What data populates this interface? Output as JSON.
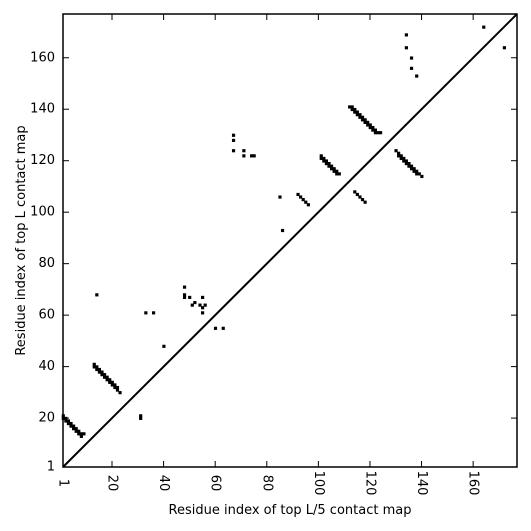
{
  "chart_data": {
    "type": "scatter",
    "xlabel": "Residue index of top L/5 contact map",
    "ylabel": "Residue index of top L contact map",
    "xlim": [
      1,
      177
    ],
    "ylim": [
      1,
      177
    ],
    "x_ticks": [
      1,
      20,
      40,
      60,
      80,
      100,
      120,
      140,
      160
    ],
    "y_ticks": [
      1,
      20,
      40,
      60,
      80,
      100,
      120,
      140,
      160
    ],
    "diagonal": true,
    "grid": false,
    "marker_color": "#000000",
    "lower_triangle_points": [
      [
        1,
        20
      ],
      [
        2,
        19
      ],
      [
        3,
        18
      ],
      [
        4,
        17
      ],
      [
        5,
        16
      ],
      [
        6,
        15
      ],
      [
        7,
        14
      ],
      [
        8,
        13
      ],
      [
        9,
        14
      ],
      [
        1,
        21
      ],
      [
        2,
        20
      ],
      [
        3,
        19
      ],
      [
        4,
        18
      ],
      [
        5,
        17
      ],
      [
        6,
        16
      ],
      [
        7,
        15
      ],
      [
        8,
        14
      ],
      [
        13,
        40
      ],
      [
        14,
        39
      ],
      [
        15,
        38
      ],
      [
        16,
        37
      ],
      [
        17,
        36
      ],
      [
        18,
        35
      ],
      [
        19,
        34
      ],
      [
        20,
        33
      ],
      [
        21,
        32
      ],
      [
        22,
        31
      ],
      [
        23,
        30
      ],
      [
        13,
        41
      ],
      [
        14,
        40
      ],
      [
        15,
        39
      ],
      [
        16,
        38
      ],
      [
        17,
        37
      ],
      [
        18,
        36
      ],
      [
        19,
        35
      ],
      [
        20,
        34
      ],
      [
        21,
        33
      ],
      [
        22,
        32
      ],
      [
        31,
        20
      ],
      [
        31,
        21
      ],
      [
        48,
        68
      ],
      [
        50,
        67
      ],
      [
        52,
        65
      ],
      [
        54,
        64
      ],
      [
        55,
        63
      ],
      [
        92,
        107
      ],
      [
        93,
        106
      ],
      [
        94,
        105
      ],
      [
        95,
        104
      ],
      [
        96,
        103
      ],
      [
        114,
        108
      ],
      [
        115,
        107
      ],
      [
        116,
        106
      ],
      [
        117,
        105
      ],
      [
        101,
        121
      ],
      [
        102,
        120
      ],
      [
        103,
        119
      ],
      [
        104,
        118
      ],
      [
        105,
        117
      ],
      [
        106,
        116
      ],
      [
        107,
        115
      ],
      [
        108,
        115
      ],
      [
        101,
        122
      ],
      [
        102,
        121
      ],
      [
        103,
        120
      ],
      [
        104,
        119
      ],
      [
        105,
        118
      ],
      [
        106,
        117
      ],
      [
        107,
        116
      ],
      [
        112,
        141
      ],
      [
        113,
        140
      ],
      [
        114,
        139
      ],
      [
        115,
        138
      ],
      [
        116,
        137
      ],
      [
        117,
        136
      ],
      [
        118,
        135
      ],
      [
        119,
        134
      ],
      [
        120,
        133
      ],
      [
        121,
        132
      ],
      [
        122,
        131
      ],
      [
        123,
        131
      ],
      [
        124,
        131
      ],
      [
        113,
        141
      ],
      [
        114,
        140
      ],
      [
        115,
        139
      ],
      [
        116,
        138
      ],
      [
        117,
        137
      ],
      [
        118,
        136
      ],
      [
        119,
        135
      ],
      [
        120,
        134
      ],
      [
        121,
        133
      ],
      [
        122,
        132
      ],
      [
        130,
        124
      ],
      [
        131,
        123
      ],
      [
        132,
        122
      ],
      [
        133,
        121
      ],
      [
        134,
        120
      ],
      [
        135,
        119
      ],
      [
        136,
        118
      ],
      [
        137,
        117
      ],
      [
        138,
        116
      ],
      [
        139,
        115
      ],
      [
        140,
        114
      ],
      [
        131,
        122
      ],
      [
        132,
        121
      ],
      [
        133,
        120
      ],
      [
        134,
        119
      ],
      [
        135,
        118
      ],
      [
        136,
        117
      ],
      [
        137,
        116
      ],
      [
        138,
        115
      ]
    ],
    "upper_triangle_points": [
      [
        14,
        68
      ],
      [
        33,
        61
      ],
      [
        36,
        61
      ],
      [
        40,
        48
      ],
      [
        48,
        71
      ],
      [
        48,
        67
      ],
      [
        51,
        64
      ],
      [
        55,
        67
      ],
      [
        55,
        61
      ],
      [
        56,
        64
      ],
      [
        60,
        55
      ],
      [
        63,
        55
      ],
      [
        67,
        130
      ],
      [
        67,
        128
      ],
      [
        67,
        124
      ],
      [
        71,
        124
      ],
      [
        71,
        122
      ],
      [
        74,
        122
      ],
      [
        75,
        122
      ],
      [
        85,
        106
      ],
      [
        86,
        93
      ],
      [
        118,
        104
      ],
      [
        134,
        169
      ],
      [
        134,
        164
      ],
      [
        136,
        160
      ],
      [
        136,
        156
      ],
      [
        138,
        153
      ],
      [
        164,
        172
      ],
      [
        172,
        164
      ]
    ]
  }
}
